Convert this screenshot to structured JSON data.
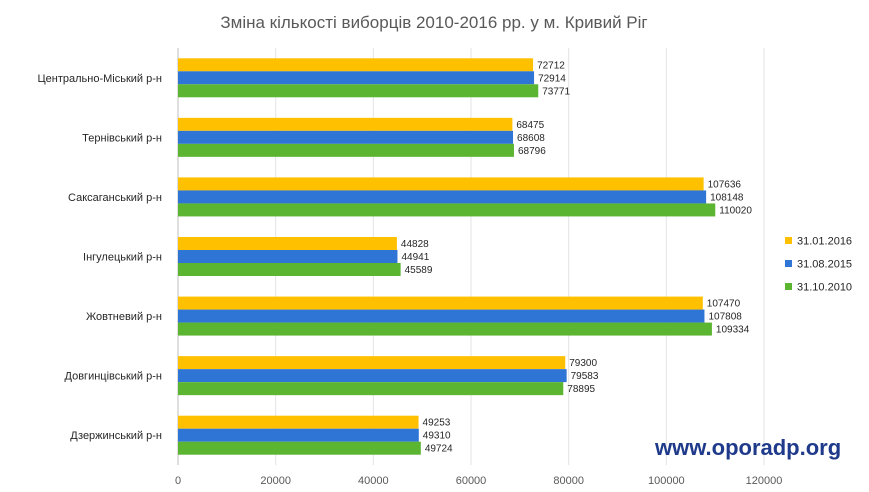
{
  "chart_data": {
    "type": "bar",
    "orientation": "horizontal",
    "title": "Зміна кількості виборців 2010-2016 рр. у м. Кривий Ріг",
    "categories": [
      "Центрально-Міський р-н",
      "Тернівський р-н",
      "Саксаганський р-н",
      "Інгулецький р-н",
      "Жовтневий р-н",
      "Довгинцівський р-н",
      "Дзержинський р-н"
    ],
    "series": [
      {
        "name": "31.01.2016",
        "color": "#ffc000",
        "values": [
          72712,
          68475,
          107636,
          44828,
          107470,
          79300,
          49253
        ]
      },
      {
        "name": "31.08.2015",
        "color": "#2e75d6",
        "values": [
          72914,
          68608,
          108148,
          44941,
          107808,
          79583,
          49310
        ]
      },
      {
        "name": "31.10.2010",
        "color": "#5cb531",
        "values": [
          73771,
          68796,
          110020,
          45589,
          109334,
          78895,
          49724
        ]
      }
    ],
    "xlim": [
      0,
      120000
    ],
    "xticks": [
      0,
      20000,
      40000,
      60000,
      80000,
      100000,
      120000
    ],
    "grid": true,
    "legend_position": "right",
    "data_labels": true
  },
  "watermark": "www.oporadp.org"
}
